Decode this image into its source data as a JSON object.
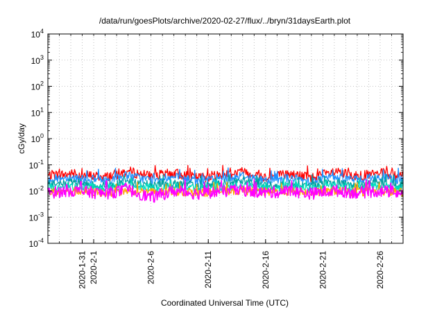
{
  "chart_data": {
    "type": "line",
    "title": "/data/run/goesPlots/archive/2020-02-27/flux/../bryn/31daysEarth.plot",
    "xlabel": "Coordinated Universal Time (UTC)",
    "ylabel": "cGy/day",
    "x_range": [
      "2020-01-28T00:00",
      "2020-02-28T00:00"
    ],
    "yscale": "log",
    "ylim": [
      0.0001,
      10000
    ],
    "grid": true,
    "legend": "none",
    "x_ticks": [
      {
        "date": "2020-01-31",
        "label": "2020-1-31"
      },
      {
        "date": "2020-02-01",
        "label": "2020-2-1"
      },
      {
        "date": "2020-02-06",
        "label": "2020-2-6"
      },
      {
        "date": "2020-02-11",
        "label": "2020-2-11"
      },
      {
        "date": "2020-02-16",
        "label": "2020-2-16"
      },
      {
        "date": "2020-02-21",
        "label": "2020-2-21"
      },
      {
        "date": "2020-02-26",
        "label": "2020-2-26"
      }
    ],
    "y_ticks": [
      {
        "value": 0.0001,
        "base": "10",
        "exp": "-4"
      },
      {
        "value": 0.001,
        "base": "10",
        "exp": "-3"
      },
      {
        "value": 0.01,
        "base": "10",
        "exp": "-2"
      },
      {
        "value": 0.1,
        "base": "10",
        "exp": "-1"
      },
      {
        "value": 1,
        "base": "10",
        "exp": "0"
      },
      {
        "value": 10,
        "base": "10",
        "exp": "1"
      },
      {
        "value": 100,
        "base": "10",
        "exp": "2"
      },
      {
        "value": 1000,
        "base": "10",
        "exp": "3"
      },
      {
        "value": 10000,
        "base": "10",
        "exp": "4"
      }
    ],
    "series": [
      {
        "color": "#ff0000",
        "base": 0.033,
        "spread": 0.35,
        "spike": 0.09,
        "x": [
          "2020-01-28",
          "2020-01-30",
          "2020-02-02",
          "2020-02-04",
          "2020-02-06",
          "2020-02-08",
          "2020-02-10",
          "2020-02-12",
          "2020-02-14",
          "2020-02-16",
          "2020-02-18",
          "2020-02-20",
          "2020-02-22",
          "2020-02-24",
          "2020-02-26",
          "2020-02-28"
        ],
        "y": [
          0.045,
          0.06,
          0.035,
          0.095,
          0.04,
          0.07,
          0.03,
          0.05,
          0.09,
          0.035,
          0.06,
          0.032,
          0.08,
          0.04,
          0.065,
          0.035
        ]
      },
      {
        "color": "#1e90ff",
        "base": 0.025,
        "spread": 0.3,
        "spike": 0.07,
        "x": [
          "2020-01-28",
          "2020-01-30",
          "2020-02-02",
          "2020-02-04",
          "2020-02-06",
          "2020-02-08",
          "2020-02-10",
          "2020-02-12",
          "2020-02-14",
          "2020-02-16",
          "2020-02-18",
          "2020-02-20",
          "2020-02-22",
          "2020-02-24",
          "2020-02-26",
          "2020-02-28"
        ],
        "y": [
          0.03,
          0.045,
          0.025,
          0.06,
          0.028,
          0.045,
          0.024,
          0.035,
          0.06,
          0.026,
          0.04,
          0.024,
          0.05,
          0.03,
          0.045,
          0.026
        ]
      },
      {
        "color": "#00a0a0",
        "base": 0.016,
        "spread": 0.3,
        "spike": 0.04,
        "x": [
          "2020-01-28",
          "2020-01-30",
          "2020-02-02",
          "2020-02-04",
          "2020-02-06",
          "2020-02-08",
          "2020-02-10",
          "2020-02-12",
          "2020-02-14",
          "2020-02-16",
          "2020-02-18",
          "2020-02-20",
          "2020-02-22",
          "2020-02-24",
          "2020-02-26",
          "2020-02-28"
        ],
        "y": [
          0.018,
          0.025,
          0.016,
          0.03,
          0.017,
          0.024,
          0.015,
          0.02,
          0.03,
          0.016,
          0.022,
          0.015,
          0.026,
          0.017,
          0.023,
          0.016
        ]
      },
      {
        "color": "#00e0c0",
        "base": 0.013,
        "spread": 0.28,
        "spike": 0.03,
        "x": [
          "2020-01-28",
          "2020-01-30",
          "2020-02-02",
          "2020-02-04",
          "2020-02-06",
          "2020-02-08",
          "2020-02-10",
          "2020-02-12",
          "2020-02-14",
          "2020-02-16",
          "2020-02-18",
          "2020-02-20",
          "2020-02-22",
          "2020-02-24",
          "2020-02-26",
          "2020-02-28"
        ],
        "y": [
          0.014,
          0.018,
          0.013,
          0.022,
          0.013,
          0.017,
          0.012,
          0.015,
          0.02,
          0.013,
          0.016,
          0.012,
          0.019,
          0.013,
          0.017,
          0.013
        ]
      },
      {
        "color": "#ffa500",
        "base": 0.009,
        "spread": 0.3,
        "spike": 0.02,
        "x": [
          "2020-01-28",
          "2020-01-30",
          "2020-02-02",
          "2020-02-04",
          "2020-02-06",
          "2020-02-08",
          "2020-02-10",
          "2020-02-12",
          "2020-02-14",
          "2020-02-16",
          "2020-02-18",
          "2020-02-20",
          "2020-02-22",
          "2020-02-24",
          "2020-02-26",
          "2020-02-28"
        ],
        "y": [
          0.009,
          0.011,
          0.008,
          0.012,
          0.009,
          0.01,
          0.008,
          0.01,
          0.012,
          0.009,
          0.01,
          0.008,
          0.011,
          0.009,
          0.01,
          0.009
        ]
      },
      {
        "color": "#ff00ff",
        "base": 0.009,
        "spread": 0.42,
        "spike": 0.025,
        "x": [
          "2020-01-28",
          "2020-01-30",
          "2020-02-02",
          "2020-02-04",
          "2020-02-06",
          "2020-02-08",
          "2020-02-10",
          "2020-02-12",
          "2020-02-14",
          "2020-02-16",
          "2020-02-18",
          "2020-02-20",
          "2020-02-22",
          "2020-02-24",
          "2020-02-26",
          "2020-02-28"
        ],
        "y": [
          0.008,
          0.012,
          0.007,
          0.014,
          0.0035,
          0.011,
          0.007,
          0.01,
          0.013,
          0.008,
          0.011,
          0.007,
          0.012,
          0.008,
          0.011,
          0.008
        ]
      }
    ]
  }
}
